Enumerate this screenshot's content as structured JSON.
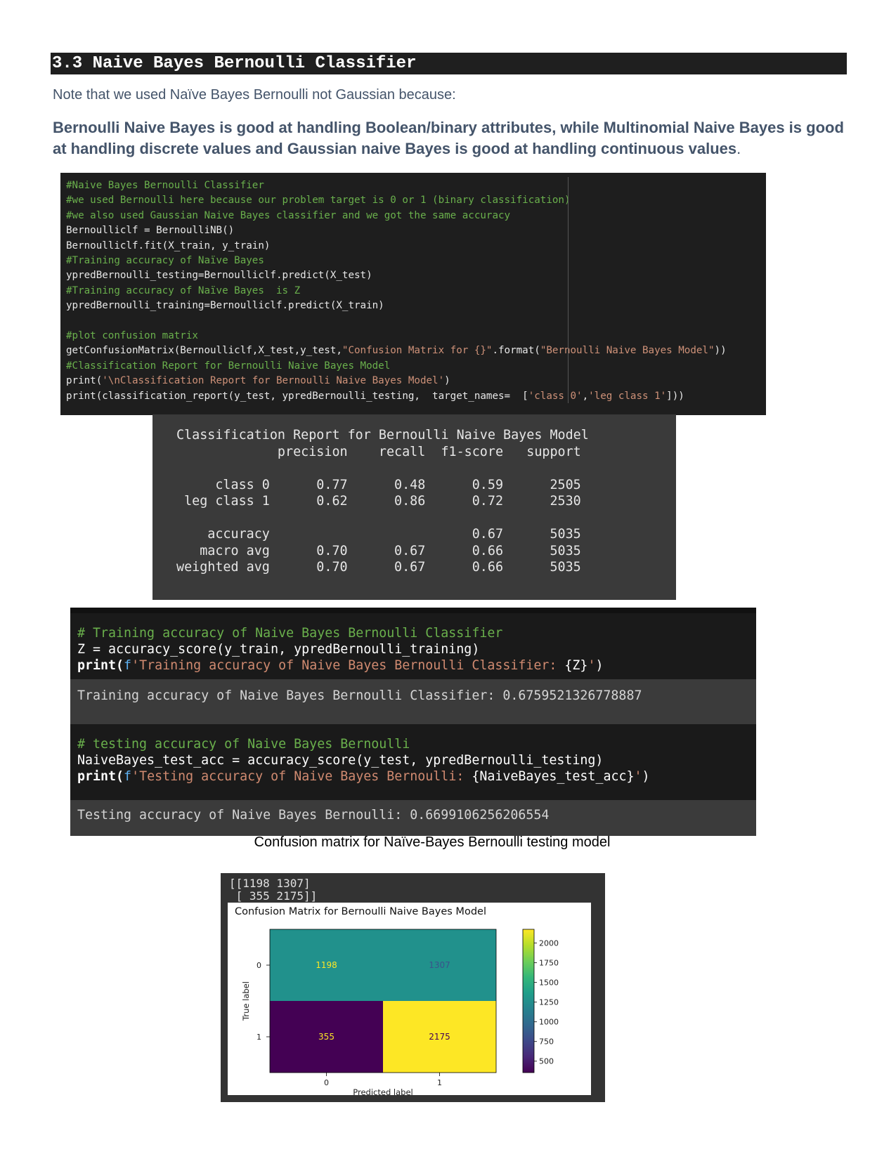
{
  "section_heading": "3.3 Naive Bayes Bernoulli Classifier",
  "note": "Note that we used Naïve Bayes Bernoulli not Gaussian because:",
  "explanation_bold": "Bernoulli Naive Bayes is good at handling Boolean/binary attributes, while Multinomial Naive Bayes is good at handling discrete values and Gaussian naive Bayes is good at handling continuous values",
  "explanation_tail": ".",
  "code_block_1": {
    "lines": [
      "#Naive Bayes Bernoulli Classifier",
      "#we used Bernoulli here because our problem target is 0 or 1 (binary classification)",
      "#we also used Gaussian Naive Bayes classifier and we got the same accuracy",
      "Bernoulliclf = BernoulliNB()",
      "Bernoulliclf.fit(X_train, y_train)",
      "#Training accuracy of Naïve Bayes",
      "ypredBernoulli_testing=Bernoulliclf.predict(X_test)",
      "#Training accuracy of Naïve Bayes  is Z",
      "ypredBernoulli_training=Bernoulliclf.predict(X_train)",
      "",
      "#plot confusion matrix",
      "getConfusionMatrix(Bernoulliclf,X_test,y_test,\"Confusion Matrix for {}\".format(\"Bernoulli Naive Bayes Model\"))",
      "#Classification Report for Bernoulli Naive Bayes Model",
      "print('\\nClassification Report for Bernoulli Naive Bayes Model')",
      "print(classification_report(y_test, ypredBernoulli_testing,  target_names=  ['class 0','leg class 1']))"
    ]
  },
  "report": {
    "title": "Classification Report for Bernoulli Naive Bayes Model",
    "header": [
      "precision",
      "recall",
      "f1-score",
      "support"
    ],
    "rows": [
      [
        "class 0",
        "0.77",
        "0.48",
        "0.59",
        "2505"
      ],
      [
        "leg class 1",
        "0.62",
        "0.86",
        "0.72",
        "2530"
      ],
      [
        "accuracy",
        "",
        "",
        "0.67",
        "5035"
      ],
      [
        "macro avg",
        "0.70",
        "0.67",
        "0.66",
        "5035"
      ],
      [
        "weighted avg",
        "0.70",
        "0.67",
        "0.66",
        "5035"
      ]
    ]
  },
  "notebook": {
    "train_comment": "# Training accuracy of Naive Bayes Bernoulli Classifier",
    "train_assign": "Z = accuracy_score(y_train, ypredBernoulli_training)",
    "train_print_fn": "print(",
    "train_print_f": "f",
    "train_print_str": "'Training accuracy of Naive Bayes Bernoulli Classifier: ",
    "train_print_var": "{Z}",
    "train_print_end": "'",
    "train_print_close": ")",
    "train_output": "Training accuracy of Naive Bayes Bernoulli Classifier: 0.6759521326778887",
    "test_comment": "# testing accuracy of Naive Bayes Bernoulli",
    "test_assign": "NaiveBayes_test_acc = accuracy_score(y_test, ypredBernoulli_testing)",
    "test_print_fn": "print(",
    "test_print_f": "f",
    "test_print_str": "'Testing accuracy of Naive Bayes Bernoulli: ",
    "test_print_var": "{NaiveBayes_test_acc}",
    "test_print_end": "'",
    "test_print_close": ")",
    "test_output": "Testing accuracy of Naive Bayes Bernoulli: 0.6699106256206554"
  },
  "caption": "Confusion matrix for Naïve-Bayes Bernoulli testing model",
  "matrix_printout": "[[1198 1307]\n [ 355 2175]]",
  "chart_data": {
    "type": "heatmap",
    "title": "Confusion Matrix for Bernoulli Naive Bayes Model",
    "xlabel": "Predicted label",
    "ylabel": "True label",
    "x_ticks": [
      "0",
      "1"
    ],
    "y_ticks": [
      "0",
      "1"
    ],
    "values": [
      [
        1198,
        1307
      ],
      [
        355,
        2175
      ]
    ],
    "colormap": "viridis",
    "colorbar_ticks": [
      500,
      750,
      1000,
      1250,
      1500,
      1750,
      2000
    ],
    "colorbar_range": [
      355,
      2175
    ],
    "cell_colors": [
      [
        "#21918c",
        "#21918c"
      ],
      [
        "#440154",
        "#fde725"
      ]
    ],
    "cell_text_colors": [
      [
        "#fde725",
        "#3b528b"
      ],
      [
        "#fde725",
        "#440154"
      ]
    ]
  }
}
